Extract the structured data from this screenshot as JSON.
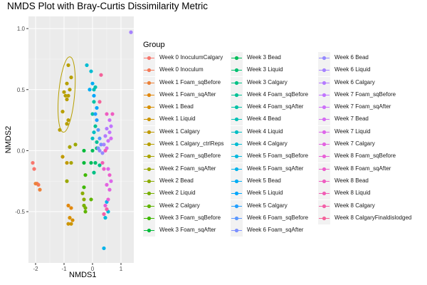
{
  "chart_data": {
    "type": "scatter",
    "title": "NMDS Plot with Bray-Curtis Dissimilarity Metric",
    "xlabel": "NMDS1",
    "ylabel": "NMDS2",
    "xlim": [
      -2.25,
      1.45
    ],
    "ylim": [
      -0.92,
      1.1
    ],
    "x_ticks": [
      "-2",
      "-1",
      "0",
      "1"
    ],
    "y_ticks": [
      "1.0",
      "0.5",
      "0.0",
      "-0.5"
    ],
    "x_tick_values": [
      -2,
      -1,
      0,
      1
    ],
    "y_tick_values": [
      1.0,
      0.5,
      0.0,
      -0.5
    ],
    "grid": true,
    "legend_title": "Group",
    "legend_position": "right",
    "series": [
      {
        "name": "Week 0 InoculumCalgary",
        "color": "#F8766D",
        "points": [
          [
            -2.1,
            -0.1
          ],
          [
            -2.05,
            -0.15
          ]
        ]
      },
      {
        "name": "Week 0 Inoculum",
        "color": "#F57A58",
        "points": [
          [
            -1.95,
            -0.27
          ],
          [
            -1.9,
            -0.28
          ]
        ]
      },
      {
        "name": "Week 1 Foam_sqBefore",
        "color": "#EC8239",
        "points": [
          [
            -1.85,
            -0.32
          ],
          [
            -2.0,
            -0.27
          ]
        ]
      },
      {
        "name": "Week 1 Foam_sqAfter",
        "color": "#E2880F",
        "points": [
          [
            -0.85,
            -0.45
          ],
          [
            -0.75,
            -0.47
          ]
        ]
      },
      {
        "name": "Week 1 Bead",
        "color": "#D78F00",
        "points": [
          [
            -0.8,
            -0.55
          ],
          [
            -0.7,
            -0.57
          ]
        ]
      },
      {
        "name": "Week 1 Liquid",
        "color": "#CC9500",
        "points": [
          [
            -0.85,
            -0.6
          ],
          [
            -0.75,
            -0.6
          ]
        ]
      },
      {
        "name": "Week 1 Calgary",
        "color": "#C09A00",
        "points": [
          [
            -1.05,
            -0.05
          ],
          [
            -0.9,
            -0.1
          ]
        ]
      },
      {
        "name": "Week 1 Calgary_ctrlReps",
        "color": "#B79F00",
        "points": [
          [
            -0.9,
            0.55
          ],
          [
            -0.85,
            0.7
          ],
          [
            -0.75,
            0.6
          ],
          [
            -1.0,
            0.48
          ],
          [
            -0.8,
            0.5
          ],
          [
            -0.9,
            0.42
          ],
          [
            -0.95,
            0.45
          ],
          [
            -0.85,
            0.45
          ],
          [
            -1.05,
            0.32
          ],
          [
            -0.85,
            0.25
          ],
          [
            -0.9,
            0.22
          ],
          [
            -1.15,
            0.17
          ]
        ]
      },
      {
        "name": "Week 2 Foam_sqBefore",
        "color": "#A9A400",
        "points": [
          [
            -0.8,
            0.03
          ],
          [
            -0.75,
            -0.1
          ]
        ]
      },
      {
        "name": "Week 2 Foam_sqAfter",
        "color": "#9AA800",
        "points": [
          [
            -0.9,
            -0.25
          ],
          [
            -0.6,
            0.05
          ]
        ]
      },
      {
        "name": "Week 2 Bead",
        "color": "#8AAC00",
        "points": [
          [
            -0.35,
            -0.35
          ],
          [
            -0.3,
            -0.4
          ]
        ]
      },
      {
        "name": "Week 2 Liquid",
        "color": "#77B000",
        "points": [
          [
            -0.3,
            -0.45
          ],
          [
            -0.25,
            -0.47
          ]
        ]
      },
      {
        "name": "Week 2 Calgary",
        "color": "#5FB400",
        "points": [
          [
            -0.05,
            -0.4
          ],
          [
            -0.25,
            -0.5
          ]
        ]
      },
      {
        "name": "Week 3 Foam_sqBefore",
        "color": "#3EB800",
        "points": [
          [
            -0.3,
            -0.3
          ],
          [
            -0.25,
            -0.2
          ]
        ]
      },
      {
        "name": "Week 3 Foam_sqAfter",
        "color": "#00BA38",
        "points": [
          [
            -0.3,
            -0.1
          ],
          [
            -0.3,
            0.0
          ]
        ]
      },
      {
        "name": "Week 3 Bead",
        "color": "#00BD59",
        "points": [
          [
            -0.05,
            -0.1
          ],
          [
            0.0,
            0.0
          ]
        ]
      },
      {
        "name": "Week 3 Liquid",
        "color": "#00BF70",
        "points": [
          [
            0.1,
            -0.1
          ],
          [
            0.15,
            0.02
          ]
        ]
      },
      {
        "name": "Week 3 Calgary",
        "color": "#00C084",
        "points": [
          [
            0.25,
            -0.12
          ],
          [
            0.05,
            -0.18
          ]
        ]
      },
      {
        "name": "Week 4 Foam_sqBefore",
        "color": "#00C195",
        "points": [
          [
            0.15,
            0.07
          ],
          [
            0.1,
            0.2
          ]
        ]
      },
      {
        "name": "Week 4 Foam_sqAfter",
        "color": "#00C2A6",
        "points": [
          [
            0.0,
            0.3
          ],
          [
            0.05,
            0.4
          ]
        ]
      },
      {
        "name": "Week 4 Bead",
        "color": "#00C0B5",
        "points": [
          [
            0.05,
            0.5
          ],
          [
            0.1,
            0.52
          ]
        ]
      },
      {
        "name": "Week 4 Liquid",
        "color": "#00BEC4",
        "points": [
          [
            0.0,
            0.1
          ],
          [
            0.05,
            0.15
          ]
        ]
      },
      {
        "name": "Week 4 Calgary",
        "color": "#00BCD2",
        "points": [
          [
            -0.2,
            0.7
          ],
          [
            -0.05,
            0.65
          ]
        ]
      },
      {
        "name": "Week 5 Foam_sqBefore",
        "color": "#00B8DE",
        "points": [
          [
            0.55,
            -0.5
          ],
          [
            0.45,
            -0.55
          ]
        ]
      },
      {
        "name": "Week 5 Foam_sqAfter",
        "color": "#00B3EA",
        "points": [
          [
            0.4,
            -0.8
          ],
          [
            0.5,
            -0.42
          ]
        ]
      },
      {
        "name": "Week 5 Bead",
        "color": "#00ADF4",
        "points": [
          [
            -0.1,
            0.5
          ],
          [
            0.0,
            0.55
          ]
        ]
      },
      {
        "name": "Week 5 Liquid",
        "color": "#00A6FC",
        "points": [
          [
            0.05,
            0.45
          ],
          [
            0.15,
            0.35
          ]
        ]
      },
      {
        "name": "Week 5 Calgary",
        "color": "#219FFF",
        "points": [
          [
            0.1,
            0.3
          ],
          [
            0.15,
            0.25
          ]
        ]
      },
      {
        "name": "Week 6 Foam_sqBefore",
        "color": "#5B98FF",
        "points": [
          [
            0.2,
            0.17
          ],
          [
            0.25,
            0.1
          ]
        ]
      },
      {
        "name": "Week 6 Foam_sqAfter",
        "color": "#7C90FF",
        "points": [
          [
            0.3,
            0.05
          ],
          [
            0.2,
            0.02
          ]
        ]
      },
      {
        "name": "Week 6 Bead",
        "color": "#9489FF",
        "points": [
          [
            0.25,
            0.0
          ],
          [
            0.35,
            -0.02
          ]
        ]
      },
      {
        "name": "Week 6 Liquid",
        "color": "#A682FF",
        "points": [
          [
            1.35,
            0.97
          ],
          [
            0.4,
            0.05
          ]
        ]
      },
      {
        "name": "Week 6 Calgary",
        "color": "#B57BFF",
        "points": [
          [
            0.45,
            0.12
          ],
          [
            0.5,
            0.18
          ]
        ]
      },
      {
        "name": "Week 7 Foam_sqBefore",
        "color": "#C175FF",
        "points": [
          [
            0.6,
            0.15
          ],
          [
            0.65,
            0.2
          ]
        ]
      },
      {
        "name": "Week 7 Foam_sqAfter",
        "color": "#CC70F9",
        "points": [
          [
            0.55,
            0.08
          ],
          [
            0.6,
            0.25
          ]
        ]
      },
      {
        "name": "Week 7 Bead",
        "color": "#D56BF2",
        "points": [
          [
            0.5,
            0.02
          ],
          [
            0.65,
            0.1
          ]
        ]
      },
      {
        "name": "Week 7 Liquid",
        "color": "#DD67EA",
        "points": [
          [
            0.55,
            -0.15
          ],
          [
            0.65,
            -0.25
          ]
        ]
      },
      {
        "name": "Week 7 Calgary",
        "color": "#E363E1",
        "points": [
          [
            0.5,
            -0.28
          ],
          [
            0.6,
            -0.32
          ]
        ]
      },
      {
        "name": "Week 8 Foam_sqBefore",
        "color": "#E860D7",
        "points": [
          [
            0.55,
            -0.4
          ],
          [
            0.45,
            -0.45
          ]
        ]
      },
      {
        "name": "Week 8 Foam_sqAfter",
        "color": "#EC5ECC",
        "points": [
          [
            0.6,
            -0.2
          ],
          [
            0.4,
            -0.15
          ]
        ]
      },
      {
        "name": "Week 8 Bead",
        "color": "#EF5DC1",
        "points": [
          [
            0.5,
            0.3
          ],
          [
            0.7,
            0.3
          ]
        ]
      },
      {
        "name": "Week 8 Liquid",
        "color": "#F15DB5",
        "points": [
          [
            0.35,
            -0.1
          ],
          [
            0.45,
            0.0
          ]
        ]
      },
      {
        "name": "Week 8 Calgary",
        "color": "#F35FA8",
        "points": [
          [
            0.4,
            -0.52
          ],
          [
            0.5,
            -0.48
          ]
        ]
      },
      {
        "name": "Week 8 CalgaryFinaldislodged",
        "color": "#F4629A",
        "points": [
          [
            0.3,
            0.62
          ],
          [
            0.25,
            0.4
          ]
        ]
      }
    ],
    "ellipse": {
      "color": "#B79F00",
      "center": [
        -0.91,
        0.46
      ],
      "rx": 0.28,
      "ry": 0.31
    }
  }
}
